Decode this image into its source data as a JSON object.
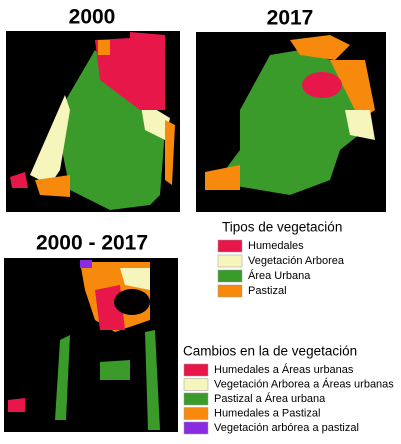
{
  "panels": [
    {
      "title": "2000"
    },
    {
      "title": "2017"
    },
    {
      "title": "2000 - 2017"
    }
  ],
  "legends": [
    {
      "title": "Tipos de vegetación",
      "items": [
        {
          "label": "Humedales",
          "color": "#e8174a"
        },
        {
          "label": "Vegetación Arborea",
          "color": "#f6f6bc"
        },
        {
          "label": "Área Urbana",
          "color": "#3a9a2a"
        },
        {
          "label": "Pastizal",
          "color": "#f7890c"
        }
      ]
    },
    {
      "title": "Cambios en la de vegetación",
      "items": [
        {
          "label": "Humedales a Áreas urbanas",
          "color": "#e8174a"
        },
        {
          "label": "Vegetación Arborea a Áreas urbanas",
          "color": "#f6f6bc"
        },
        {
          "label": "Pastizal a Área urbana",
          "color": "#3a9a2a"
        },
        {
          "label": "Humedales a Pastizal",
          "color": "#f7890c"
        },
        {
          "label": "Vegetación arbórea a pastizal",
          "color": "#8a2be2"
        }
      ]
    }
  ]
}
